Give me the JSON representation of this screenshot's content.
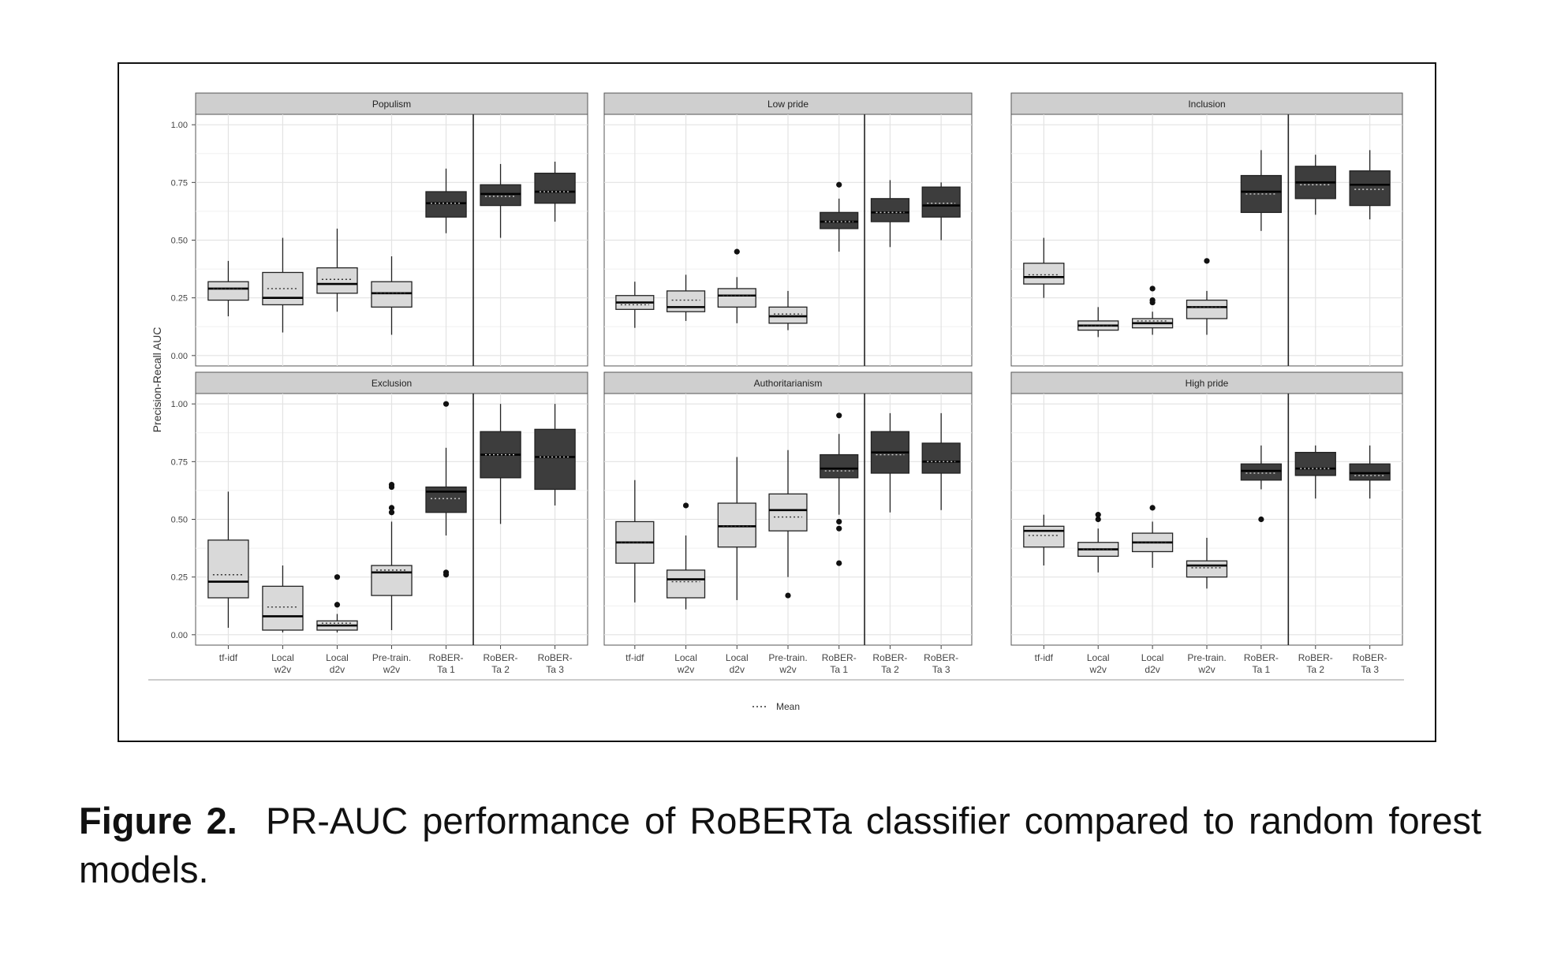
{
  "y_axis_label": "Precision-Recall AUC",
  "y_ticks": [
    "0.00",
    "0.25",
    "0.50",
    "0.75",
    "1.00"
  ],
  "x_categories": [
    [
      "tf-idf"
    ],
    [
      "Local",
      "w2v"
    ],
    [
      "Local",
      "d2v"
    ],
    [
      "Pre-train.",
      "w2v"
    ],
    [
      "RoBER-",
      "Ta 1"
    ],
    [
      "RoBER-",
      "Ta 2"
    ],
    [
      "RoBER-",
      "Ta 3"
    ]
  ],
  "legend_label": "Mean",
  "caption": {
    "label": "Figure 2.",
    "text": "PR-AUC performance of RoBERTa classifier compared to random forest models."
  },
  "colors": {
    "light_box": "#d9d9d9",
    "dark_box": "#3d3d3d",
    "strip": "#cfcfcf",
    "grid": "#e3e3e3"
  },
  "chart_data": {
    "type": "box",
    "ylabel": "Precision-Recall AUC",
    "ylim": [
      0,
      1
    ],
    "categories": [
      "tf-idf",
      "Local w2v",
      "Local d2v",
      "Pre-train. w2v",
      "RoBER-Ta 1",
      "RoBER-Ta 2",
      "RoBER-Ta 3"
    ],
    "legend": "Mean",
    "grid": true,
    "panels": [
      {
        "title": "Populism",
        "boxes": [
          {
            "min": 0.17,
            "q1": 0.24,
            "median": 0.29,
            "q3": 0.32,
            "max": 0.41,
            "mean": 0.29,
            "outliers": []
          },
          {
            "min": 0.1,
            "q1": 0.22,
            "median": 0.25,
            "q3": 0.36,
            "max": 0.51,
            "mean": 0.29,
            "outliers": []
          },
          {
            "min": 0.19,
            "q1": 0.27,
            "median": 0.31,
            "q3": 0.38,
            "max": 0.55,
            "mean": 0.33,
            "outliers": []
          },
          {
            "min": 0.09,
            "q1": 0.21,
            "median": 0.27,
            "q3": 0.32,
            "max": 0.43,
            "mean": 0.27,
            "outliers": []
          },
          {
            "min": 0.53,
            "q1": 0.6,
            "median": 0.66,
            "q3": 0.71,
            "max": 0.81,
            "mean": 0.66,
            "outliers": []
          },
          {
            "min": 0.51,
            "q1": 0.65,
            "median": 0.7,
            "q3": 0.74,
            "max": 0.83,
            "mean": 0.69,
            "outliers": []
          },
          {
            "min": 0.58,
            "q1": 0.66,
            "median": 0.71,
            "q3": 0.79,
            "max": 0.84,
            "mean": 0.71,
            "outliers": []
          }
        ]
      },
      {
        "title": "Low pride",
        "boxes": [
          {
            "min": 0.12,
            "q1": 0.2,
            "median": 0.23,
            "q3": 0.26,
            "max": 0.32,
            "mean": 0.22,
            "outliers": []
          },
          {
            "min": 0.15,
            "q1": 0.19,
            "median": 0.21,
            "q3": 0.28,
            "max": 0.35,
            "mean": 0.24,
            "outliers": []
          },
          {
            "min": 0.14,
            "q1": 0.21,
            "median": 0.26,
            "q3": 0.29,
            "max": 0.34,
            "mean": 0.26,
            "outliers": [
              0.45
            ]
          },
          {
            "min": 0.11,
            "q1": 0.14,
            "median": 0.17,
            "q3": 0.21,
            "max": 0.28,
            "mean": 0.18,
            "outliers": []
          },
          {
            "min": 0.45,
            "q1": 0.55,
            "median": 0.58,
            "q3": 0.62,
            "max": 0.68,
            "mean": 0.58,
            "outliers": [
              0.74
            ]
          },
          {
            "min": 0.47,
            "q1": 0.58,
            "median": 0.62,
            "q3": 0.68,
            "max": 0.76,
            "mean": 0.62,
            "outliers": []
          },
          {
            "min": 0.5,
            "q1": 0.6,
            "median": 0.65,
            "q3": 0.73,
            "max": 0.75,
            "mean": 0.66,
            "outliers": []
          }
        ]
      },
      {
        "title": "Inclusion",
        "boxes": [
          {
            "min": 0.25,
            "q1": 0.31,
            "median": 0.34,
            "q3": 0.4,
            "max": 0.51,
            "mean": 0.35,
            "outliers": []
          },
          {
            "min": 0.08,
            "q1": 0.11,
            "median": 0.13,
            "q3": 0.15,
            "max": 0.21,
            "mean": 0.13,
            "outliers": []
          },
          {
            "min": 0.09,
            "q1": 0.12,
            "median": 0.14,
            "q3": 0.16,
            "max": 0.19,
            "mean": 0.15,
            "outliers": [
              0.24,
              0.23,
              0.29
            ]
          },
          {
            "min": 0.09,
            "q1": 0.16,
            "median": 0.21,
            "q3": 0.24,
            "max": 0.28,
            "mean": 0.21,
            "outliers": [
              0.41
            ]
          },
          {
            "min": 0.54,
            "q1": 0.62,
            "median": 0.71,
            "q3": 0.78,
            "max": 0.89,
            "mean": 0.7,
            "outliers": []
          },
          {
            "min": 0.61,
            "q1": 0.68,
            "median": 0.75,
            "q3": 0.82,
            "max": 0.87,
            "mean": 0.74,
            "outliers": []
          },
          {
            "min": 0.59,
            "q1": 0.65,
            "median": 0.74,
            "q3": 0.8,
            "max": 0.89,
            "mean": 0.72,
            "outliers": []
          }
        ]
      },
      {
        "title": "Exclusion",
        "boxes": [
          {
            "min": 0.03,
            "q1": 0.16,
            "median": 0.23,
            "q3": 0.41,
            "max": 0.62,
            "mean": 0.26,
            "outliers": []
          },
          {
            "min": 0.01,
            "q1": 0.02,
            "median": 0.08,
            "q3": 0.21,
            "max": 0.3,
            "mean": 0.12,
            "outliers": []
          },
          {
            "min": 0.01,
            "q1": 0.02,
            "median": 0.04,
            "q3": 0.06,
            "max": 0.09,
            "mean": 0.05,
            "outliers": [
              0.13,
              0.25
            ]
          },
          {
            "min": 0.02,
            "q1": 0.17,
            "median": 0.27,
            "q3": 0.3,
            "max": 0.49,
            "mean": 0.28,
            "outliers": [
              0.53,
              0.55,
              0.64,
              0.65
            ]
          },
          {
            "min": 0.43,
            "q1": 0.53,
            "median": 0.62,
            "q3": 0.64,
            "max": 0.81,
            "mean": 0.59,
            "outliers": [
              0.26,
              0.27,
              1.0
            ]
          },
          {
            "min": 0.48,
            "q1": 0.68,
            "median": 0.78,
            "q3": 0.88,
            "max": 1.0,
            "mean": 0.78,
            "outliers": []
          },
          {
            "min": 0.56,
            "q1": 0.63,
            "median": 0.77,
            "q3": 0.89,
            "max": 1.0,
            "mean": 0.77,
            "outliers": []
          }
        ]
      },
      {
        "title": "Authoritarianism",
        "boxes": [
          {
            "min": 0.14,
            "q1": 0.31,
            "median": 0.4,
            "q3": 0.49,
            "max": 0.67,
            "mean": 0.4,
            "outliers": []
          },
          {
            "min": 0.11,
            "q1": 0.16,
            "median": 0.24,
            "q3": 0.28,
            "max": 0.43,
            "mean": 0.23,
            "outliers": [
              0.56
            ]
          },
          {
            "min": 0.15,
            "q1": 0.38,
            "median": 0.47,
            "q3": 0.57,
            "max": 0.77,
            "mean": 0.47,
            "outliers": []
          },
          {
            "min": 0.25,
            "q1": 0.45,
            "median": 0.54,
            "q3": 0.61,
            "max": 0.8,
            "mean": 0.51,
            "outliers": [
              0.17
            ]
          },
          {
            "min": 0.52,
            "q1": 0.68,
            "median": 0.72,
            "q3": 0.78,
            "max": 0.87,
            "mean": 0.71,
            "outliers": [
              0.31,
              0.46,
              0.49,
              0.95
            ]
          },
          {
            "min": 0.53,
            "q1": 0.7,
            "median": 0.79,
            "q3": 0.88,
            "max": 0.96,
            "mean": 0.78,
            "outliers": []
          },
          {
            "min": 0.54,
            "q1": 0.7,
            "median": 0.75,
            "q3": 0.83,
            "max": 0.96,
            "mean": 0.75,
            "outliers": []
          }
        ]
      },
      {
        "title": "High pride",
        "boxes": [
          {
            "min": 0.3,
            "q1": 0.38,
            "median": 0.45,
            "q3": 0.47,
            "max": 0.52,
            "mean": 0.43,
            "outliers": []
          },
          {
            "min": 0.27,
            "q1": 0.34,
            "median": 0.37,
            "q3": 0.4,
            "max": 0.46,
            "mean": 0.37,
            "outliers": [
              0.5,
              0.52
            ]
          },
          {
            "min": 0.29,
            "q1": 0.36,
            "median": 0.4,
            "q3": 0.44,
            "max": 0.49,
            "mean": 0.4,
            "outliers": [
              0.55
            ]
          },
          {
            "min": 0.2,
            "q1": 0.25,
            "median": 0.3,
            "q3": 0.32,
            "max": 0.42,
            "mean": 0.29,
            "outliers": []
          },
          {
            "min": 0.63,
            "q1": 0.67,
            "median": 0.71,
            "q3": 0.74,
            "max": 0.82,
            "mean": 0.7,
            "outliers": [
              0.5
            ]
          },
          {
            "min": 0.59,
            "q1": 0.69,
            "median": 0.72,
            "q3": 0.79,
            "max": 0.82,
            "mean": 0.72,
            "outliers": []
          },
          {
            "min": 0.59,
            "q1": 0.67,
            "median": 0.7,
            "q3": 0.74,
            "max": 0.82,
            "mean": 0.69,
            "outliers": []
          }
        ]
      }
    ]
  }
}
